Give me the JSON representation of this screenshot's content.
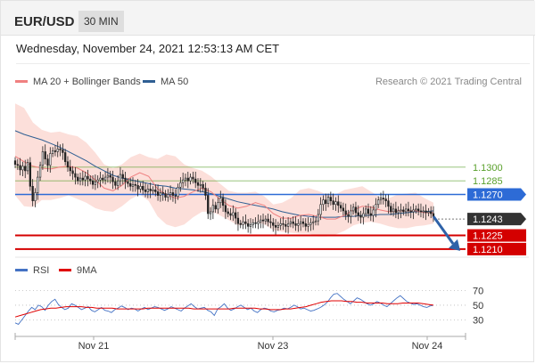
{
  "header": {
    "pair": "EUR/USD",
    "timeframe": "30 MIN"
  },
  "datetime": "Wednesday, November 24, 2021 12:53:13 AM CET",
  "legend": {
    "items": [
      {
        "label": "MA 20 + Bollinger Bands",
        "color": "#f08080"
      },
      {
        "label": "MA 50",
        "color": "#2f5f93"
      }
    ],
    "credit": "Research © 2021 Trading Central"
  },
  "chart_data": [
    {
      "type": "line",
      "title": "",
      "x_ticks": [
        "Nov 21",
        "Nov 23",
        "Nov 24"
      ],
      "levels": [
        {
          "value": "1.1300",
          "kind": "target",
          "color": "#5aa02c"
        },
        {
          "value": "1.1285",
          "kind": "target",
          "color": "#5aa02c"
        },
        {
          "value": "1.1270",
          "kind": "pivot",
          "color": "#2d6bd6"
        },
        {
          "value": "1.1243",
          "kind": "current",
          "color": "#333333"
        },
        {
          "value": "1.1225",
          "kind": "support",
          "color": "#d40000"
        },
        {
          "value": "1.1210",
          "kind": "support",
          "color": "#d40000"
        }
      ],
      "ylim": [
        1.1205,
        1.138
      ],
      "forecast": "down toward 1.1225 / 1.1210",
      "series": [
        {
          "name": "",
          "role": "price",
          "values": [
            1.1303,
            1.1302,
            1.1297,
            1.1301,
            1.1296,
            1.1305,
            1.1279,
            1.1263,
            1.1272,
            1.1289,
            1.1302,
            1.1317,
            1.1309,
            1.1302,
            1.1315,
            1.1318,
            1.1317,
            1.132,
            1.1319,
            1.1316,
            1.1306,
            1.13,
            1.1296,
            1.1293,
            1.1289,
            1.1285,
            1.1288,
            1.1286,
            1.129,
            1.1287,
            1.1285,
            1.1281,
            1.1284,
            1.1286,
            1.1288,
            1.1286,
            1.1289,
            1.1291,
            1.1289,
            1.1284,
            1.128,
            1.1285,
            1.1292,
            1.1288,
            1.1284,
            1.1282,
            1.1279,
            1.1281,
            1.128,
            1.1276,
            1.1279,
            1.1275,
            1.1273,
            1.1276,
            1.1274,
            1.1275,
            1.1273,
            1.1269,
            1.1272,
            1.1271,
            1.1267,
            1.127,
            1.1272,
            1.1269,
            1.1268,
            1.1278,
            1.1283,
            1.1286,
            1.1288,
            1.1285,
            1.1289,
            1.1287,
            1.1283,
            1.128,
            1.1281,
            1.1277,
            1.1269,
            1.1249,
            1.1251,
            1.1258,
            1.1254,
            1.1261,
            1.1266,
            1.1258,
            1.1251,
            1.1249,
            1.1247,
            1.125,
            1.1244,
            1.1238,
            1.1237,
            1.124,
            1.1238,
            1.1235,
            1.1237,
            1.1239,
            1.1238,
            1.124,
            1.1242,
            1.1241,
            1.1243,
            1.124,
            1.1239,
            1.1236,
            1.1234,
            1.1236,
            1.1238,
            1.1237,
            1.1235,
            1.1238,
            1.124,
            1.1238,
            1.1236,
            1.1238,
            1.124,
            1.1238,
            1.1235,
            1.1237,
            1.1239,
            1.124,
            1.1241,
            1.1248,
            1.1259,
            1.1264,
            1.126,
            1.1267,
            1.1263,
            1.1259,
            1.1262,
            1.1258,
            1.1255,
            1.1252,
            1.1248,
            1.1246,
            1.1252,
            1.1256,
            1.125,
            1.1247,
            1.1245,
            1.1249,
            1.1254,
            1.1249,
            1.1247,
            1.1253,
            1.1259,
            1.1264,
            1.1266,
            1.1265,
            1.1263,
            1.1257,
            1.1251,
            1.1254,
            1.125,
            1.1252,
            1.1253,
            1.1251,
            1.1254,
            1.1252,
            1.1251,
            1.1253,
            1.1254,
            1.1252,
            1.1251,
            1.1252,
            1.125,
            1.1251,
            1.1249,
            1.1246
          ]
        },
        {
          "name": "MA 20 + Bollinger Bands",
          "role": "ma20",
          "values": [
            1.1312,
            1.1306,
            1.1301,
            1.1299,
            1.1298,
            1.13,
            1.1301,
            1.1299,
            1.1294,
            1.1286,
            1.1277,
            1.1274,
            1.128,
            1.1289,
            1.1294,
            1.129,
            1.1276,
            1.127,
            1.1266,
            1.1268,
            1.1273,
            1.1277,
            1.1273,
            1.1265,
            1.1258,
            1.1255,
            1.1257,
            1.1261,
            1.1258,
            1.1249,
            1.1244,
            1.1244,
            1.1247,
            1.1248,
            1.1246,
            1.1243,
            1.1243,
            1.1247,
            1.1253,
            1.1257,
            1.1256,
            1.1253,
            1.1251,
            1.1252,
            1.1252,
            1.1252,
            1.125,
            1.125
          ]
        },
        {
          "name": "MA 20 + Bollinger Bands",
          "role": "bollinger-upper",
          "values": [
            1.137,
            1.1365,
            1.1349,
            1.1341,
            1.1338,
            1.1339,
            1.1336,
            1.1334,
            1.1327,
            1.1316,
            1.1303,
            1.1299,
            1.1303,
            1.1311,
            1.1315,
            1.1311,
            1.1309,
            1.1314,
            1.1312,
            1.1303,
            1.1299,
            1.1296,
            1.129,
            1.1282,
            1.1274,
            1.1272,
            1.1272,
            1.1273,
            1.1268,
            1.1259,
            1.1261,
            1.1266,
            1.1275,
            1.1277,
            1.1274,
            1.127,
            1.127,
            1.1275,
            1.1277,
            1.1279,
            1.1273,
            1.1267,
            1.1266,
            1.127,
            1.1271,
            1.1272,
            1.1266,
            1.1261
          ]
        },
        {
          "name": "MA 20 + Bollinger Bands",
          "role": "bollinger-lower",
          "values": [
            1.1269,
            1.1257,
            1.1256,
            1.1264,
            1.1264,
            1.1266,
            1.1269,
            1.1265,
            1.1261,
            1.1255,
            1.1252,
            1.1251,
            1.1257,
            1.1265,
            1.127,
            1.1263,
            1.1246,
            1.1237,
            1.1234,
            1.1237,
            1.1245,
            1.1251,
            1.1251,
            1.1247,
            1.1242,
            1.1236,
            1.1237,
            1.124,
            1.1237,
            1.1231,
            1.1229,
            1.1228,
            1.1227,
            1.1227,
            1.1224,
            1.1224,
            1.1226,
            1.123,
            1.1236,
            1.1239,
            1.124,
            1.1238,
            1.1235,
            1.1233,
            1.1233,
            1.1235,
            1.1236,
            1.1238
          ]
        },
        {
          "name": "MA 50",
          "role": "ma50",
          "values": [
            1.134,
            1.1336,
            1.1333,
            1.133,
            1.1326,
            1.1322,
            1.1317,
            1.1312,
            1.1307,
            1.1301,
            1.1296,
            1.1291,
            1.1288,
            1.1286,
            1.1284,
            1.1282,
            1.128,
            1.1279,
            1.1277,
            1.1276,
            1.1275,
            1.1273,
            1.1271,
            1.1268,
            1.1265,
            1.1262,
            1.126,
            1.1258,
            1.1256,
            1.1254,
            1.1251,
            1.1249,
            1.1247,
            1.1246,
            1.1245,
            1.1245,
            1.1245,
            1.1246,
            1.1246,
            1.1247,
            1.1247,
            1.1248,
            1.1248,
            1.1249,
            1.125,
            1.1251,
            1.1251,
            1.1252
          ]
        }
      ]
    },
    {
      "type": "line",
      "title": "",
      "x_ticks": [
        "Nov 21",
        "Nov 23",
        "Nov 24"
      ],
      "legend": [
        {
          "label": "RSI",
          "color": "#4472c4"
        },
        {
          "label": "9MA",
          "color": "#e00000"
        }
      ],
      "y_ticks": [
        "70",
        "50",
        "30"
      ],
      "ylim": [
        10,
        85
      ],
      "series": [
        {
          "name": "RSI",
          "values": [
            26,
            24,
            30,
            36,
            42,
            47,
            44,
            50,
            48,
            43,
            50,
            55,
            58,
            51,
            47,
            44,
            46,
            52,
            50,
            47,
            44,
            46,
            48,
            43,
            41,
            44,
            47,
            43,
            42,
            40,
            44,
            46,
            49,
            47,
            44,
            46,
            45,
            42,
            45,
            47,
            44,
            46,
            48,
            47,
            45,
            43,
            45,
            48,
            46,
            44,
            42,
            46,
            49,
            52,
            48,
            45,
            46,
            47,
            43,
            41,
            36,
            45,
            48,
            52,
            46,
            43,
            45,
            48,
            50,
            47,
            44,
            46,
            42,
            40,
            44,
            46,
            45,
            42,
            41,
            43,
            44,
            46,
            45,
            47,
            50,
            48,
            45,
            46,
            44,
            42,
            43,
            45,
            47,
            50,
            54,
            60,
            65,
            66,
            62,
            58,
            55,
            52,
            56,
            60,
            58,
            55,
            52,
            50,
            52,
            55,
            53,
            50,
            48,
            52,
            56,
            60,
            63,
            59,
            55,
            53,
            51,
            52,
            50,
            48,
            47,
            49,
            50
          ]
        },
        {
          "name": "9MA",
          "values": [
            34,
            36,
            38,
            40,
            42,
            44,
            45,
            46,
            46,
            47,
            48,
            48,
            48,
            48,
            47,
            47,
            46,
            46,
            46,
            46,
            45,
            45,
            45,
            45,
            45,
            45,
            46,
            46,
            46,
            46,
            46,
            46,
            46,
            46,
            46,
            45,
            45,
            45,
            45,
            45,
            45,
            45,
            45,
            46,
            46,
            46,
            46,
            46,
            45,
            45,
            44,
            44,
            44,
            45,
            45,
            46,
            47,
            48,
            50,
            52,
            54,
            55,
            56,
            56,
            56,
            55,
            55,
            54,
            54,
            53,
            53,
            53,
            53,
            52,
            52,
            52,
            53,
            53,
            53,
            53,
            52,
            51,
            50
          ]
        }
      ]
    }
  ]
}
